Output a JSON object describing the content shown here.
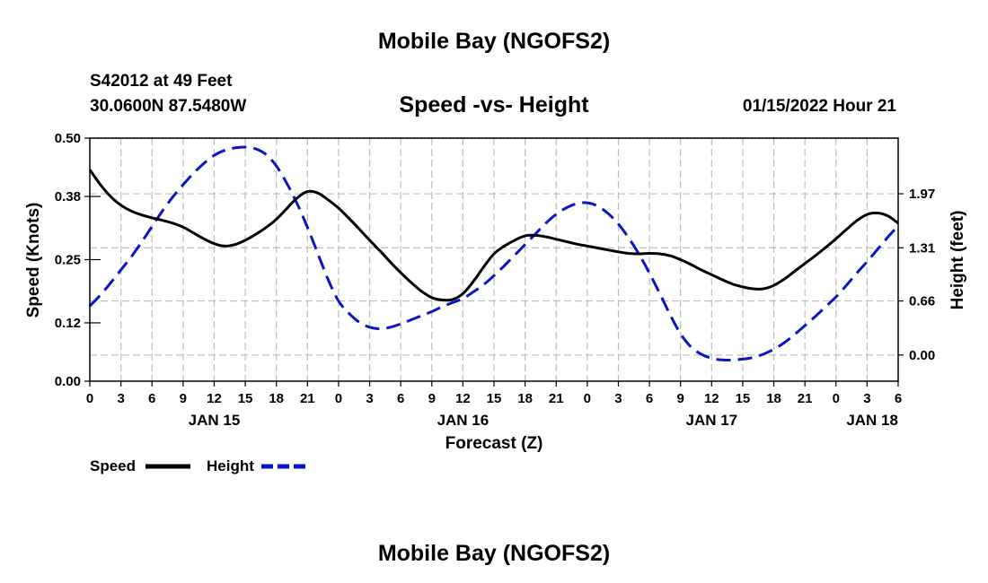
{
  "header": {
    "title": "Mobile Bay (NGOFS2)",
    "station": "S42012 at 49 Feet",
    "location": "30.0600N  87.5480W",
    "subtitle": "Speed -vs- Height",
    "datetime": "01/15/2022 Hour 21",
    "footer_title": "Mobile Bay (NGOFS2)"
  },
  "legend": {
    "speed_label": "Speed",
    "height_label": "Height"
  },
  "colors": {
    "speed": "#000000",
    "height": "#0a14c8"
  },
  "chart_data": {
    "type": "line",
    "title": "Speed -vs- Height",
    "xlabel": "Forecast (Z)",
    "ylabel": "Speed (Knots)",
    "y2label": "Height (feet)",
    "xlim": [
      0,
      78
    ],
    "ylim": [
      0,
      0.5
    ],
    "y2lim": [
      -0.32,
      2.65
    ],
    "x_tick_values": [
      0,
      3,
      6,
      9,
      12,
      15,
      18,
      21,
      24,
      27,
      30,
      33,
      36,
      39,
      42,
      45,
      48,
      51,
      54,
      57,
      60,
      63,
      66,
      69,
      72,
      75,
      78
    ],
    "x_tick_labels": [
      "0",
      "3",
      "6",
      "9",
      "12",
      "15",
      "18",
      "21",
      "0",
      "3",
      "6",
      "9",
      "12",
      "15",
      "18",
      "21",
      "0",
      "3",
      "6",
      "9",
      "12",
      "15",
      "18",
      "21",
      "0",
      "3",
      "6"
    ],
    "date_labels": [
      {
        "x": 12,
        "label": "JAN 15"
      },
      {
        "x": 36,
        "label": "JAN 16"
      },
      {
        "x": 60,
        "label": "JAN 17"
      },
      {
        "x": 75.5,
        "label": "JAN 18"
      }
    ],
    "y_ticks": [
      0.0,
      0.12,
      0.25,
      0.38,
      0.5
    ],
    "y_tick_labels": [
      "0.00",
      "0.12",
      "0.25",
      "0.38",
      "0.50"
    ],
    "y2_ticks": [
      0.0,
      0.66,
      1.31,
      1.97
    ],
    "y2_tick_labels": [
      "0.00",
      "0.66",
      "1.31",
      "1.97"
    ],
    "series": [
      {
        "name": "Speed",
        "axis": "left",
        "style": "solid",
        "x": [
          0,
          1,
          2,
          3,
          4,
          5,
          6,
          7,
          8,
          9,
          10,
          11,
          12,
          13,
          14,
          15,
          16,
          17,
          18,
          19,
          20,
          21,
          22,
          23,
          24,
          25,
          26,
          27,
          28,
          29,
          30,
          31,
          32,
          33,
          34,
          35,
          36,
          37,
          38,
          39,
          40,
          41,
          42,
          43,
          44,
          45,
          46,
          47,
          48,
          49,
          50,
          51,
          52,
          53,
          54,
          55,
          56,
          57,
          58,
          59,
          60,
          61,
          62,
          63,
          64,
          65,
          66,
          67,
          68,
          69,
          70,
          71,
          72,
          73,
          74,
          75,
          76,
          77,
          78
        ],
        "values": [
          0.435,
          0.405,
          0.38,
          0.362,
          0.35,
          0.342,
          0.336,
          0.331,
          0.325,
          0.317,
          0.305,
          0.293,
          0.283,
          0.278,
          0.281,
          0.29,
          0.302,
          0.316,
          0.333,
          0.355,
          0.377,
          0.39,
          0.387,
          0.373,
          0.356,
          0.335,
          0.313,
          0.29,
          0.268,
          0.245,
          0.223,
          0.203,
          0.185,
          0.172,
          0.167,
          0.168,
          0.18,
          0.205,
          0.235,
          0.262,
          0.278,
          0.29,
          0.299,
          0.3,
          0.297,
          0.292,
          0.287,
          0.282,
          0.278,
          0.274,
          0.27,
          0.266,
          0.263,
          0.262,
          0.263,
          0.262,
          0.258,
          0.25,
          0.24,
          0.229,
          0.219,
          0.209,
          0.2,
          0.194,
          0.19,
          0.19,
          0.197,
          0.21,
          0.226,
          0.242,
          0.258,
          0.275,
          0.293,
          0.312,
          0.33,
          0.343,
          0.346,
          0.34,
          0.325
        ]
      },
      {
        "name": "Height",
        "axis": "right",
        "style": "dashed",
        "x": [
          0,
          1,
          2,
          3,
          4,
          5,
          6,
          7,
          8,
          9,
          10,
          11,
          12,
          13,
          14,
          15,
          16,
          17,
          18,
          19,
          20,
          21,
          22,
          23,
          24,
          25,
          26,
          27,
          28,
          29,
          30,
          31,
          32,
          33,
          34,
          35,
          36,
          37,
          38,
          39,
          40,
          41,
          42,
          43,
          44,
          45,
          46,
          47,
          48,
          49,
          50,
          51,
          52,
          53,
          54,
          55,
          56,
          57,
          58,
          59,
          60,
          61,
          62,
          63,
          64,
          65,
          66,
          67,
          68,
          69,
          70,
          71,
          72,
          73,
          74,
          75,
          76,
          77,
          78
        ],
        "values": [
          0.6,
          0.73,
          0.88,
          1.04,
          1.2,
          1.38,
          1.57,
          1.76,
          1.93,
          2.08,
          2.22,
          2.34,
          2.44,
          2.5,
          2.53,
          2.54,
          2.52,
          2.45,
          2.31,
          2.1,
          1.85,
          1.56,
          1.24,
          0.92,
          0.66,
          0.51,
          0.4,
          0.34,
          0.32,
          0.34,
          0.38,
          0.43,
          0.48,
          0.53,
          0.59,
          0.64,
          0.69,
          0.77,
          0.86,
          0.97,
          1.09,
          1.22,
          1.35,
          1.48,
          1.61,
          1.72,
          1.8,
          1.85,
          1.86,
          1.82,
          1.73,
          1.6,
          1.43,
          1.23,
          1.0,
          0.75,
          0.49,
          0.26,
          0.1,
          0.01,
          -0.04,
          -0.06,
          -0.06,
          -0.05,
          -0.03,
          0.01,
          0.07,
          0.15,
          0.25,
          0.36,
          0.47,
          0.59,
          0.71,
          0.85,
          1.0,
          1.14,
          1.29,
          1.44,
          1.58
        ]
      }
    ]
  }
}
